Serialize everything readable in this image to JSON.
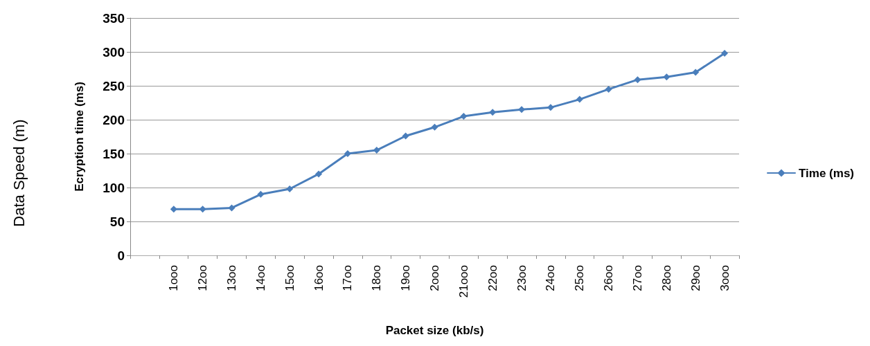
{
  "chart_data": {
    "type": "line",
    "xlabel": "Packet size (kb/s)",
    "ylabel": "Ecryption time (ms)",
    "annotations": [
      "Data Speed (m)"
    ],
    "categories": [
      null,
      "1ooo",
      "12oo",
      "13oo",
      "14oo",
      "15oo",
      "16oo",
      "17oo",
      "18oo",
      "19oo",
      "2ooo",
      "21ooo",
      "22oo",
      "23oo",
      "24oo",
      "25oo",
      "26oo",
      "27oo",
      "28oo",
      "29oo",
      "3ooo"
    ],
    "series": [
      {
        "name": "Time (ms)",
        "color": "#4a7ebb",
        "values": [
          null,
          68,
          68,
          70,
          90,
          98,
          120,
          150,
          155,
          176,
          189,
          205,
          211,
          215,
          218,
          230,
          245,
          259,
          263,
          270,
          298
        ]
      }
    ],
    "ylim": [
      0,
      350
    ],
    "yticks": [
      0,
      50,
      100,
      150,
      200,
      250,
      300,
      350
    ],
    "grid": "y",
    "legend": "right",
    "marker": "diamond",
    "line_style": "solid"
  }
}
